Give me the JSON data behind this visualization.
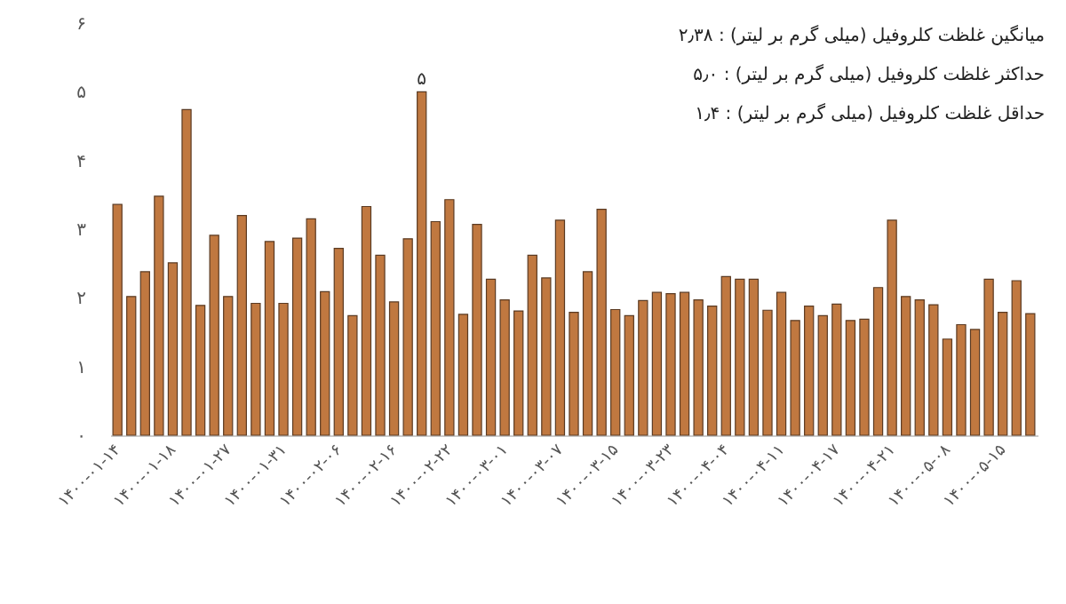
{
  "chart_data": {
    "type": "bar",
    "annotations": [
      "میانگین غلظت کلروفیل (میلی گرم بر لیتر) : ۲٫۳۸",
      "حداکثر غلظت کلروفیل (میلی گرم بر لیتر) : ۵٫۰",
      "حداقل غلظت کلروفیل (میلی گرم بر لیتر) : ۱٫۴"
    ],
    "categories": [
      "۱۴۰۰-۰۱-۱۴",
      null,
      null,
      null,
      "۱۴۰۰-۰۱-۱۸",
      null,
      null,
      null,
      "۱۴۰۰-۰۱-۲۷",
      null,
      null,
      null,
      "۱۴۰۰-۰۱-۳۱",
      null,
      null,
      null,
      "۱۴۰۰-۰۲-۰۶",
      null,
      null,
      null,
      "۱۴۰۰-۰۲-۱۶",
      null,
      null,
      null,
      "۱۴۰۰-۰۲-۲۲",
      null,
      null,
      null,
      "۱۴۰۰-۰۳-۰۱",
      null,
      null,
      null,
      "۱۴۰۰-۰۳-۰۷",
      null,
      null,
      null,
      "۱۴۰۰-۰۳-۱۵",
      null,
      null,
      null,
      "۱۴۰۰-۰۳-۲۳",
      null,
      null,
      null,
      "۱۴۰۰-۰۴-۰۴",
      null,
      null,
      null,
      "۱۴۰۰-۰۴-۱۱",
      null,
      null,
      null,
      "۱۴۰۰-۰۴-۱۷",
      null,
      null,
      null,
      "۱۴۰۰-۰۴-۲۱",
      null,
      null,
      null,
      "۱۴۰۰-۰۵-۰۸",
      null,
      null,
      null,
      "۱۴۰۰-۰۵-۱۵",
      null,
      null
    ],
    "values": [
      3.36,
      2.02,
      2.38,
      3.48,
      2.51,
      4.74,
      1.89,
      2.91,
      2.02,
      3.2,
      1.92,
      2.82,
      1.92,
      2.87,
      3.15,
      2.09,
      2.72,
      1.74,
      3.33,
      2.62,
      1.94,
      2.86,
      5.0,
      3.11,
      3.43,
      1.76,
      3.07,
      2.27,
      1.97,
      1.81,
      2.62,
      2.29,
      3.13,
      1.79,
      2.38,
      3.29,
      1.83,
      1.74,
      1.96,
      2.08,
      2.06,
      2.08,
      1.97,
      1.88,
      2.31,
      2.27,
      2.27,
      1.82,
      2.08,
      1.67,
      1.88,
      1.74,
      1.91,
      1.67,
      1.69,
      2.15,
      3.13,
      2.02,
      1.97,
      1.9,
      1.4,
      1.61,
      1.54,
      2.27,
      1.79,
      2.25,
      1.77
    ],
    "value_labels": [
      null,
      null,
      null,
      null,
      null,
      null,
      null,
      null,
      null,
      null,
      null,
      null,
      null,
      null,
      null,
      null,
      null,
      null,
      null,
      null,
      null,
      null,
      "۵",
      null,
      null,
      null,
      null,
      null,
      null,
      null,
      null,
      null,
      null,
      null,
      null,
      null,
      null,
      null,
      null,
      null,
      null,
      null,
      null,
      null,
      null,
      null,
      null,
      null,
      null,
      null,
      null,
      null,
      null,
      null,
      null,
      null,
      null,
      null,
      null,
      null,
      null,
      null,
      null,
      null,
      null,
      null,
      null
    ],
    "color": "#c07840",
    "ylim": [
      0,
      6
    ],
    "yticks": [
      {
        "value": 0,
        "label": "۰"
      },
      {
        "value": 1,
        "label": "۱"
      },
      {
        "value": 2,
        "label": "۲"
      },
      {
        "value": 3,
        "label": "۳"
      },
      {
        "value": 4,
        "label": "۴"
      },
      {
        "value": 5,
        "label": "۵"
      },
      {
        "value": 6,
        "label": "۶"
      }
    ],
    "grid": false
  }
}
